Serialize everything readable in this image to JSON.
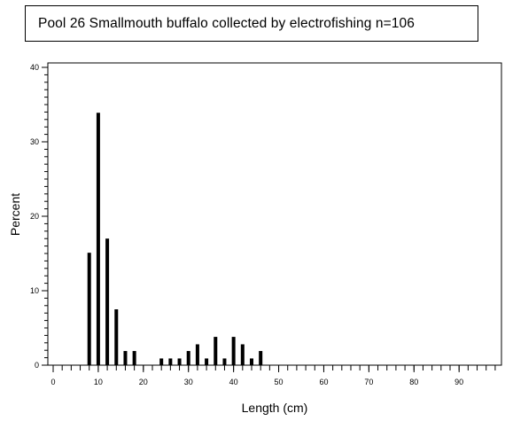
{
  "title": "Pool 26 Smallmouth buffalo collected by electrofishing n=106",
  "chart_data": {
    "type": "bar",
    "title": "Pool 26 Smallmouth buffalo collected by electrofishing n=106",
    "xlabel": "Length (cm)",
    "ylabel": "Percent",
    "xlim": [
      0,
      99
    ],
    "ylim": [
      0,
      40
    ],
    "x_ticks": [
      0,
      10,
      20,
      30,
      40,
      50,
      60,
      70,
      80,
      90
    ],
    "x_tick_labels": [
      "0",
      "10",
      "20",
      "30",
      "40",
      "50",
      "60",
      "70",
      "80",
      "90"
    ],
    "x_minor_step": 2,
    "y_ticks": [
      0,
      10,
      20,
      30,
      40
    ],
    "y_tick_labels": [
      "0",
      "10",
      "20",
      "30",
      "40"
    ],
    "y_minor_step": 1,
    "grid": false,
    "legend": "none",
    "bar_color": "#000000",
    "x": [
      8,
      10,
      12,
      14,
      16,
      18,
      24,
      26,
      28,
      30,
      32,
      34,
      36,
      38,
      40,
      42,
      44,
      46
    ],
    "values": [
      15.1,
      33.9,
      17.0,
      7.5,
      1.9,
      1.9,
      0.9,
      0.9,
      0.9,
      1.9,
      2.8,
      0.9,
      3.8,
      0.9,
      3.8,
      2.8,
      0.9,
      1.9
    ]
  }
}
